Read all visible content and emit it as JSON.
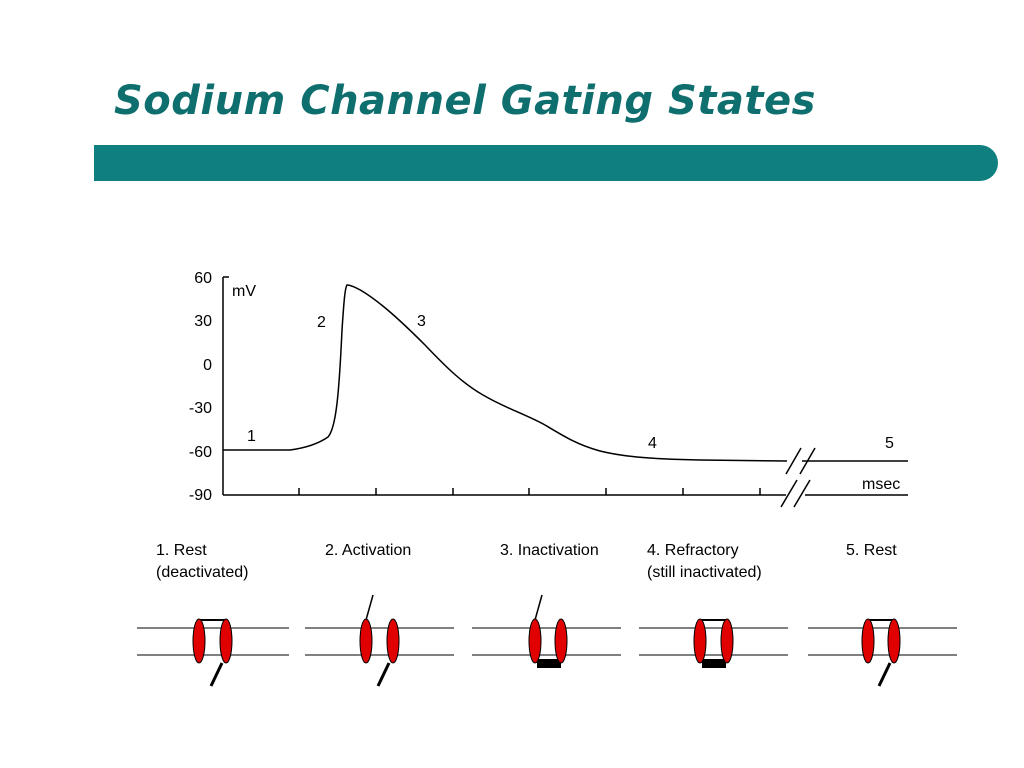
{
  "slide": {
    "title": "Sodium Channel Gating States"
  },
  "chart": {
    "y_unit": "mV",
    "x_unit": "msec",
    "y_ticks": [
      "60",
      "30",
      "0",
      "-30",
      "-60",
      "-90"
    ],
    "phase_numbers": [
      "1",
      "2",
      "3",
      "4",
      "5"
    ]
  },
  "states": [
    {
      "line1": "1. Rest",
      "line2": "(deactivated)",
      "activation_gate": "closed",
      "inactivation_gate": "open"
    },
    {
      "line1": "2. Activation",
      "line2": "",
      "activation_gate": "open",
      "inactivation_gate": "open"
    },
    {
      "line1": "3. Inactivation",
      "line2": "",
      "activation_gate": "open",
      "inactivation_gate": "closed"
    },
    {
      "line1": "4. Refractory",
      "line2": "(still inactivated)",
      "activation_gate": "closed",
      "inactivation_gate": "closed"
    },
    {
      "line1": "5. Rest",
      "line2": "",
      "activation_gate": "closed",
      "inactivation_gate": "open"
    }
  ],
  "colors": {
    "title": "#0f6e6e",
    "title_bar": "#0f7f7f",
    "channel": "#e00000",
    "gate": "#000000"
  }
}
